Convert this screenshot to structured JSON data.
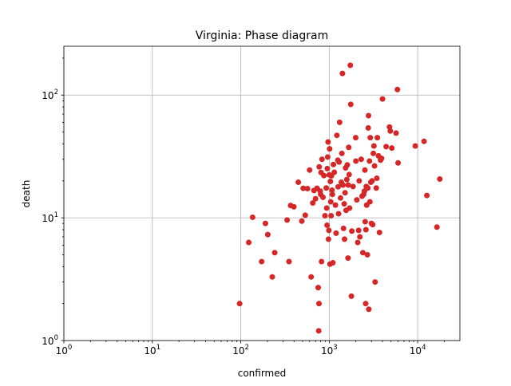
{
  "chart_data": {
    "type": "scatter",
    "title": "Virginia: Phase diagram",
    "xlabel": "confirmed",
    "ylabel": "death",
    "xscale": "log",
    "yscale": "log",
    "xlim": [
      1,
      30000
    ],
    "ylim": [
      1,
      250
    ],
    "grid": true,
    "marker_color": "#d62728",
    "x_ticks": [
      {
        "value": 1,
        "base": "10",
        "exp": "0"
      },
      {
        "value": 10,
        "base": "10",
        "exp": "1"
      },
      {
        "value": 100,
        "base": "10",
        "exp": "2"
      },
      {
        "value": 1000,
        "base": "10",
        "exp": "3"
      },
      {
        "value": 10000,
        "base": "10",
        "exp": "4"
      }
    ],
    "y_ticks": [
      {
        "value": 1,
        "base": "10",
        "exp": "0"
      },
      {
        "value": 10,
        "base": "10",
        "exp": "1"
      },
      {
        "value": 100,
        "base": "10",
        "exp": "2"
      }
    ],
    "points": [
      [
        97,
        2.0
      ],
      [
        123,
        6.3
      ],
      [
        136,
        10.1
      ],
      [
        172,
        4.4
      ],
      [
        190,
        9.0
      ],
      [
        202,
        7.3
      ],
      [
        227,
        3.3
      ],
      [
        242,
        5.2
      ],
      [
        334,
        9.6
      ],
      [
        351,
        4.4
      ],
      [
        366,
        12.6
      ],
      [
        398,
        12.3
      ],
      [
        447,
        19.5
      ],
      [
        490,
        9.4
      ],
      [
        508,
        17.4
      ],
      [
        536,
        10.5
      ],
      [
        568,
        17.3
      ],
      [
        600,
        24.5
      ],
      [
        624,
        3.3
      ],
      [
        652,
        13.2
      ],
      [
        672,
        16.7
      ],
      [
        700,
        14.3
      ],
      [
        728,
        17.4
      ],
      [
        750,
        2.7
      ],
      [
        760,
        1.2
      ],
      [
        766,
        2.0
      ],
      [
        770,
        26.0
      ],
      [
        790,
        16.5
      ],
      [
        800,
        15.5
      ],
      [
        808,
        23.4
      ],
      [
        818,
        4.4
      ],
      [
        828,
        30.0
      ],
      [
        850,
        14.7
      ],
      [
        870,
        22.1
      ],
      [
        895,
        10.4
      ],
      [
        925,
        17.5
      ],
      [
        935,
        12.0
      ],
      [
        945,
        8.7
      ],
      [
        950,
        25.2
      ],
      [
        960,
        31.3
      ],
      [
        970,
        41.5
      ],
      [
        980,
        6.7
      ],
      [
        990,
        7.9
      ],
      [
        1000,
        22.4
      ],
      [
        1010,
        36.5
      ],
      [
        1020,
        4.2
      ],
      [
        1030,
        19.8
      ],
      [
        1040,
        13.5
      ],
      [
        1050,
        10.4
      ],
      [
        1060,
        22.0
      ],
      [
        1075,
        16.8
      ],
      [
        1085,
        15.5
      ],
      [
        1100,
        4.3
      ],
      [
        1115,
        27.2
      ],
      [
        1140,
        23.5
      ],
      [
        1175,
        12.7
      ],
      [
        1195,
        7.5
      ],
      [
        1220,
        47.0
      ],
      [
        1250,
        29.5
      ],
      [
        1260,
        17.9
      ],
      [
        1275,
        10.8
      ],
      [
        1290,
        28.5
      ],
      [
        1310,
        60.0
      ],
      [
        1340,
        14.5
      ],
      [
        1370,
        19.5
      ],
      [
        1390,
        33.5
      ],
      [
        1410,
        150.0
      ],
      [
        1430,
        18.5
      ],
      [
        1450,
        8.2
      ],
      [
        1475,
        13.0
      ],
      [
        1490,
        6.7
      ],
      [
        1510,
        16.0
      ],
      [
        1530,
        25.5
      ],
      [
        1550,
        11.5
      ],
      [
        1580,
        20.5
      ],
      [
        1600,
        27.0
      ],
      [
        1630,
        4.7
      ],
      [
        1640,
        18.5
      ],
      [
        1660,
        37.5
      ],
      [
        1680,
        22.5
      ],
      [
        1700,
        12.0
      ],
      [
        1730,
        175.0
      ],
      [
        1750,
        84.0
      ],
      [
        1780,
        2.3
      ],
      [
        1800,
        7.8
      ],
      [
        1860,
        18.0
      ],
      [
        1990,
        45.0
      ],
      [
        2000,
        29.0
      ],
      [
        2050,
        14.0
      ],
      [
        2100,
        6.3
      ],
      [
        2150,
        7.9
      ],
      [
        2180,
        20.0
      ],
      [
        2220,
        7.0
      ],
      [
        2300,
        30.0
      ],
      [
        2350,
        15.0
      ],
      [
        2400,
        5.2
      ],
      [
        2450,
        15.5
      ],
      [
        2500,
        16.5
      ],
      [
        2530,
        24.5
      ],
      [
        2550,
        9.3
      ],
      [
        2580,
        2.0
      ],
      [
        2600,
        8.0
      ],
      [
        2620,
        18.0
      ],
      [
        2650,
        12.7
      ],
      [
        2700,
        5.0
      ],
      [
        2730,
        17.5
      ],
      [
        2760,
        54.0
      ],
      [
        2780,
        68.0
      ],
      [
        2800,
        1.8
      ],
      [
        2850,
        29.0
      ],
      [
        2880,
        13.5
      ],
      [
        2910,
        45.0
      ],
      [
        2950,
        19.5
      ],
      [
        3000,
        9.0
      ],
      [
        3050,
        20.0
      ],
      [
        3100,
        8.8
      ],
      [
        3150,
        33.5
      ],
      [
        3200,
        38.5
      ],
      [
        3250,
        26.5
      ],
      [
        3300,
        3.0
      ],
      [
        3400,
        17.5
      ],
      [
        3450,
        21.0
      ],
      [
        3500,
        45.0
      ],
      [
        3600,
        32.0
      ],
      [
        3700,
        7.6
      ],
      [
        3800,
        29.5
      ],
      [
        3900,
        30.5
      ],
      [
        4000,
        93.0
      ],
      [
        4400,
        38.0
      ],
      [
        4800,
        55.0
      ],
      [
        4900,
        51.0
      ],
      [
        5100,
        37.0
      ],
      [
        5700,
        49.0
      ],
      [
        5900,
        111.0
      ],
      [
        6000,
        28.0
      ],
      [
        9400,
        38.5
      ],
      [
        11800,
        42.0
      ],
      [
        12700,
        15.2
      ],
      [
        16500,
        8.4
      ],
      [
        17800,
        20.7
      ]
    ]
  }
}
